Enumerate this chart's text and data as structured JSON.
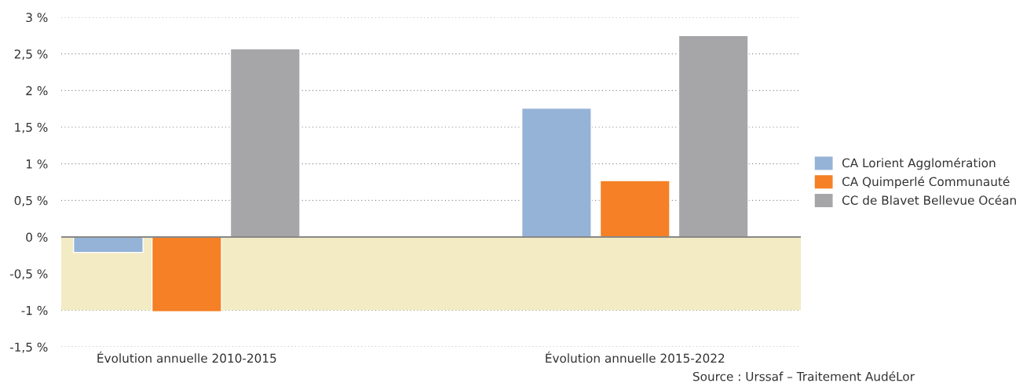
{
  "chart_data": {
    "type": "bar",
    "categories": [
      "Évolution annuelle 2010-2015",
      "Évolution annuelle 2015-2022"
    ],
    "series": [
      {
        "name": "CA Lorient Agglomération",
        "color": "#95b3d7",
        "values": [
          -0.21,
          1.76
        ]
      },
      {
        "name": "CA Quimperlé Communauté",
        "color": "#f58025",
        "values": [
          -1.02,
          0.77
        ]
      },
      {
        "name": "CC de Blavet Bellevue Océan",
        "color": "#a6a6a8",
        "values": [
          2.57,
          2.75
        ]
      }
    ],
    "ylim": [
      -1.5,
      3
    ],
    "yticks": [
      {
        "value": -1.5,
        "label": "-1,5 %"
      },
      {
        "value": -1,
        "label": "-1 %"
      },
      {
        "value": -0.5,
        "label": "-0,5 %"
      },
      {
        "value": 0,
        "label": "0 %"
      },
      {
        "value": 0.5,
        "label": "0,5 %"
      },
      {
        "value": 1,
        "label": "1 %"
      },
      {
        "value": 1.5,
        "label": "1,5 %"
      },
      {
        "value": 2,
        "label": "2 %"
      },
      {
        "value": 2.5,
        "label": "2,5 %"
      },
      {
        "value": 3,
        "label": "3 %"
      }
    ],
    "bands": [
      {
        "axis": "y",
        "from": 0,
        "to": -1,
        "color": "#f3ebc4"
      }
    ],
    "grid": "y",
    "legend": "right",
    "annotations": [
      "Source : Urssaf – Traitement AudéLor"
    ]
  }
}
